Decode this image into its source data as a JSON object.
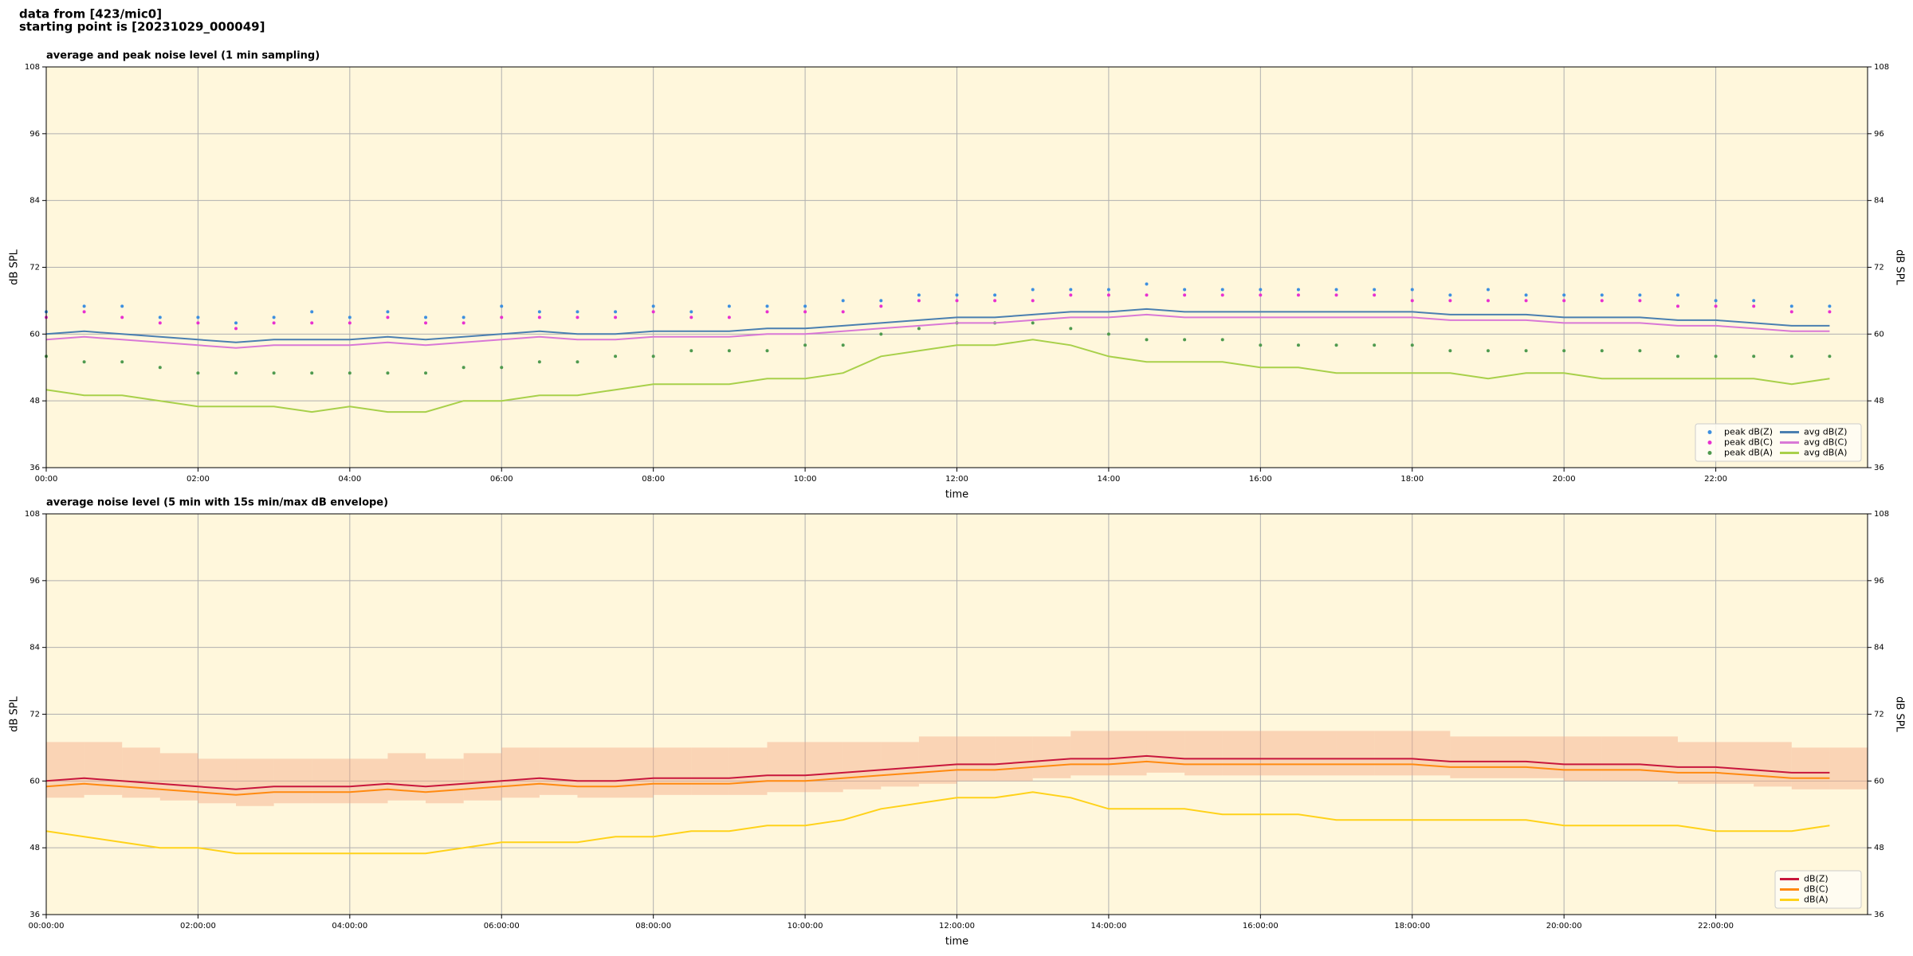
{
  "header": {
    "lines": [
      "data from [423/mic0]",
      "starting point is [20231029_000049]"
    ]
  },
  "chart_data": [
    {
      "type": "line",
      "title": "average and peak noise level (1 min sampling)",
      "xlabel": "time",
      "ylabel": "dB SPL",
      "facecolor": "#fff7dc",
      "grid": true,
      "legend_loc": "lower right",
      "legend_ncol": 2,
      "xlim": [
        0,
        24
      ],
      "ylim": [
        36,
        108
      ],
      "yticks": [
        36,
        48,
        60,
        72,
        84,
        96,
        108
      ],
      "xticks": [
        {
          "value": 0,
          "label": "00:00"
        },
        {
          "value": 2,
          "label": "02:00"
        },
        {
          "value": 4,
          "label": "04:00"
        },
        {
          "value": 6,
          "label": "06:00"
        },
        {
          "value": 8,
          "label": "08:00"
        },
        {
          "value": 10,
          "label": "10:00"
        },
        {
          "value": 12,
          "label": "12:00"
        },
        {
          "value": 14,
          "label": "14:00"
        },
        {
          "value": 16,
          "label": "16:00"
        },
        {
          "value": 18,
          "label": "18:00"
        },
        {
          "value": 20,
          "label": "20:00"
        },
        {
          "value": 22,
          "label": "22:00"
        }
      ],
      "x": [
        0,
        0.5,
        1,
        1.5,
        2,
        2.5,
        3,
        3.5,
        4,
        4.5,
        5,
        5.5,
        6,
        6.5,
        7,
        7.5,
        8,
        8.5,
        9,
        9.5,
        10,
        10.5,
        11,
        11.5,
        12,
        12.5,
        13,
        13.5,
        14,
        14.5,
        15,
        15.5,
        16,
        16.5,
        17,
        17.5,
        18,
        18.5,
        19,
        19.5,
        20,
        20.5,
        21,
        21.5,
        22,
        22.5,
        23,
        23.5
      ],
      "series": [
        {
          "name": "peak dB(Z)",
          "kind": "scatter",
          "color": "#3d8fe0",
          "values": [
            64,
            65,
            65,
            63,
            63,
            62,
            63,
            64,
            63,
            64,
            63,
            63,
            65,
            64,
            64,
            64,
            65,
            64,
            65,
            65,
            65,
            66,
            66,
            67,
            67,
            67,
            68,
            68,
            68,
            69,
            68,
            68,
            68,
            68,
            68,
            68,
            68,
            67,
            68,
            67,
            67,
            67,
            67,
            67,
            66,
            66,
            65,
            65
          ]
        },
        {
          "name": "peak dB(C)",
          "kind": "scatter",
          "color": "#e830d0",
          "values": [
            63,
            64,
            63,
            62,
            62,
            61,
            62,
            62,
            62,
            63,
            62,
            62,
            63,
            63,
            63,
            63,
            64,
            63,
            63,
            64,
            64,
            64,
            65,
            66,
            66,
            66,
            66,
            67,
            67,
            67,
            67,
            67,
            67,
            67,
            67,
            67,
            66,
            66,
            66,
            66,
            66,
            66,
            66,
            65,
            65,
            65,
            64,
            64
          ]
        },
        {
          "name": "peak dB(A)",
          "kind": "scatter",
          "color": "#4f9a4f",
          "values": [
            56,
            55,
            55,
            54,
            53,
            53,
            53,
            53,
            53,
            53,
            53,
            54,
            54,
            55,
            55,
            56,
            56,
            57,
            57,
            57,
            58,
            58,
            60,
            61,
            62,
            62,
            62,
            61,
            60,
            59,
            59,
            59,
            58,
            58,
            58,
            58,
            58,
            57,
            57,
            57,
            57,
            57,
            57,
            56,
            56,
            56,
            56,
            56
          ]
        },
        {
          "name": "avg dB(Z)",
          "kind": "line",
          "color": "#4a7fb0",
          "values": [
            60,
            60.5,
            60,
            59.5,
            59,
            58.5,
            59,
            59,
            59,
            59.5,
            59,
            59.5,
            60,
            60.5,
            60,
            60,
            60.5,
            60.5,
            60.5,
            61,
            61,
            61.5,
            62,
            62.5,
            63,
            63,
            63.5,
            64,
            64,
            64.5,
            64,
            64,
            64,
            64,
            64,
            64,
            64,
            63.5,
            63.5,
            63.5,
            63,
            63,
            63,
            62.5,
            62.5,
            62,
            61.5,
            61.5
          ]
        },
        {
          "name": "avg dB(C)",
          "kind": "line",
          "color": "#d978d6",
          "values": [
            59,
            59.5,
            59,
            58.5,
            58,
            57.5,
            58,
            58,
            58,
            58.5,
            58,
            58.5,
            59,
            59.5,
            59,
            59,
            59.5,
            59.5,
            59.5,
            60,
            60,
            60.5,
            61,
            61.5,
            62,
            62,
            62.5,
            63,
            63,
            63.5,
            63,
            63,
            63,
            63,
            63,
            63,
            63,
            62.5,
            62.5,
            62.5,
            62,
            62,
            62,
            61.5,
            61.5,
            61,
            60.5,
            60.5
          ]
        },
        {
          "name": "avg dB(A)",
          "kind": "line",
          "color": "#a8d04a",
          "values": [
            50,
            49,
            49,
            48,
            47,
            47,
            47,
            46,
            47,
            46,
            46,
            48,
            48,
            49,
            49,
            50,
            51,
            51,
            51,
            52,
            52,
            53,
            56,
            57,
            58,
            58,
            59,
            58,
            56,
            55,
            55,
            55,
            54,
            54,
            53,
            53,
            53,
            53,
            52,
            53,
            53,
            52,
            52,
            52,
            52,
            52,
            51,
            52
          ]
        }
      ]
    },
    {
      "type": "line",
      "title": "average noise level (5 min with 15s min/max dB envelope)",
      "xlabel": "time",
      "ylabel": "dB SPL",
      "facecolor": "#fff7dc",
      "grid": true,
      "legend_loc": "lower right",
      "legend_ncol": 1,
      "xlim": [
        0,
        24
      ],
      "ylim": [
        36,
        108
      ],
      "yticks": [
        36,
        48,
        60,
        72,
        84,
        96,
        108
      ],
      "xticks": [
        {
          "value": 0,
          "label": "00:00:00"
        },
        {
          "value": 2,
          "label": "02:00:00"
        },
        {
          "value": 4,
          "label": "04:00:00"
        },
        {
          "value": 6,
          "label": "06:00:00"
        },
        {
          "value": 8,
          "label": "08:00:00"
        },
        {
          "value": 10,
          "label": "10:00:00"
        },
        {
          "value": 12,
          "label": "12:00:00"
        },
        {
          "value": 14,
          "label": "14:00:00"
        },
        {
          "value": 16,
          "label": "16:00:00"
        },
        {
          "value": 18,
          "label": "18:00:00"
        },
        {
          "value": 20,
          "label": "20:00:00"
        },
        {
          "value": 22,
          "label": "22:00:00"
        }
      ],
      "x": [
        0,
        0.5,
        1,
        1.5,
        2,
        2.5,
        3,
        3.5,
        4,
        4.5,
        5,
        5.5,
        6,
        6.5,
        7,
        7.5,
        8,
        8.5,
        9,
        9.5,
        10,
        10.5,
        11,
        11.5,
        12,
        12.5,
        13,
        13.5,
        14,
        14.5,
        15,
        15.5,
        16,
        16.5,
        17,
        17.5,
        18,
        18.5,
        19,
        19.5,
        20,
        20.5,
        21,
        21.5,
        22,
        22.5,
        23,
        23.5
      ],
      "envelope": {
        "color": "#f4a886",
        "upper": [
          67,
          67,
          66,
          65,
          64,
          64,
          64,
          64,
          64,
          65,
          64,
          65,
          66,
          66,
          66,
          66,
          66,
          66,
          66,
          67,
          67,
          67,
          67,
          68,
          68,
          68,
          68,
          69,
          69,
          69,
          69,
          69,
          69,
          69,
          69,
          69,
          69,
          68,
          68,
          68,
          68,
          68,
          68,
          67,
          67,
          67,
          66,
          66
        ],
        "lower": [
          57,
          57.5,
          57,
          56.5,
          56,
          55.5,
          56,
          56,
          56,
          56.5,
          56,
          56.5,
          57,
          57.5,
          57,
          57,
          57.5,
          57.5,
          57.5,
          58,
          58,
          58.5,
          59,
          59.5,
          60,
          60,
          60.5,
          61,
          61,
          61.5,
          61,
          61,
          61,
          61,
          61,
          61,
          61,
          60.5,
          60.5,
          60.5,
          60,
          60,
          60,
          59.5,
          59.5,
          59,
          58.5,
          58.5
        ]
      },
      "series": [
        {
          "name": "dB(Z)",
          "kind": "line",
          "color": "#c8163c",
          "values": [
            60,
            60.5,
            60,
            59.5,
            59,
            58.5,
            59,
            59,
            59,
            59.5,
            59,
            59.5,
            60,
            60.5,
            60,
            60,
            60.5,
            60.5,
            60.5,
            61,
            61,
            61.5,
            62,
            62.5,
            63,
            63,
            63.5,
            64,
            64,
            64.5,
            64,
            64,
            64,
            64,
            64,
            64,
            64,
            63.5,
            63.5,
            63.5,
            63,
            63,
            63,
            62.5,
            62.5,
            62,
            61.5,
            61.5
          ]
        },
        {
          "name": "dB(C)",
          "kind": "line",
          "color": "#ff8a10",
          "values": [
            59,
            59.5,
            59,
            58.5,
            58,
            57.5,
            58,
            58,
            58,
            58.5,
            58,
            58.5,
            59,
            59.5,
            59,
            59,
            59.5,
            59.5,
            59.5,
            60,
            60,
            60.5,
            61,
            61.5,
            62,
            62,
            62.5,
            63,
            63,
            63.5,
            63,
            63,
            63,
            63,
            63,
            63,
            63,
            62.5,
            62.5,
            62.5,
            62,
            62,
            62,
            61.5,
            61.5,
            61,
            60.5,
            60.5
          ]
        },
        {
          "name": "dB(A)",
          "kind": "line",
          "color": "#ffd21a",
          "values": [
            51,
            50,
            49,
            48,
            48,
            47,
            47,
            47,
            47,
            47,
            47,
            48,
            49,
            49,
            49,
            50,
            50,
            51,
            51,
            52,
            52,
            53,
            55,
            56,
            57,
            57,
            58,
            57,
            55,
            55,
            55,
            54,
            54,
            54,
            53,
            53,
            53,
            53,
            53,
            53,
            52,
            52,
            52,
            52,
            51,
            51,
            51,
            52
          ]
        }
      ]
    }
  ]
}
